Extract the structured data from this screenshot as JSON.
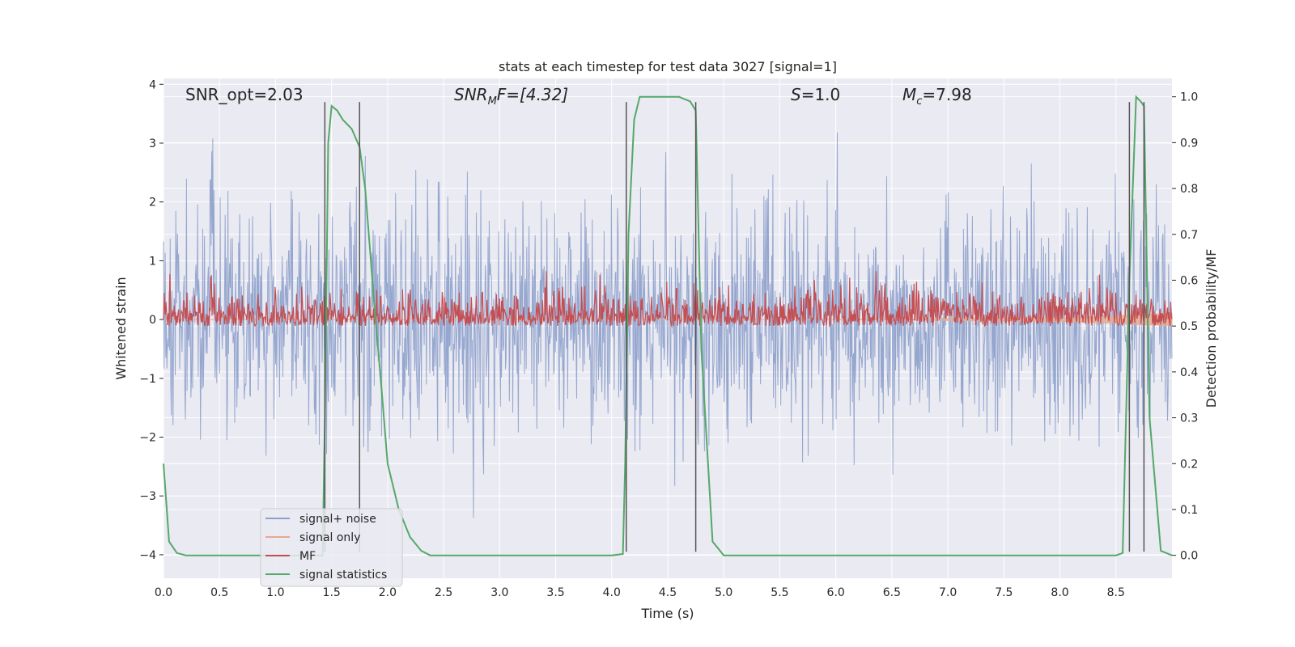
{
  "chart_data": {
    "type": "line",
    "title": "stats at each timestep for test data 3027 [signal=1]",
    "xlabel": "Time (s)",
    "ylabel": "Whitened strain",
    "y2label": "Detection probability/MF",
    "xlim": [
      0,
      9
    ],
    "ylim": [
      -4.4,
      4.1
    ],
    "y2lim": [
      -0.05,
      1.04
    ],
    "xticks": [
      "0.0",
      "0.5",
      "1.0",
      "1.5",
      "2.0",
      "2.5",
      "3.0",
      "3.5",
      "4.0",
      "4.5",
      "5.0",
      "5.5",
      "6.0",
      "6.5",
      "7.0",
      "7.5",
      "8.0",
      "8.5"
    ],
    "yticks": [
      "−4",
      "−3",
      "−2",
      "−1",
      "0",
      "1",
      "2",
      "3",
      "4"
    ],
    "y2ticks": [
      "0.0",
      "0.1",
      "0.2",
      "0.3",
      "0.4",
      "0.5",
      "0.6",
      "0.7",
      "0.8",
      "0.9",
      "1.0"
    ],
    "grid": true,
    "legend_position": "lower-left",
    "annotations": {
      "snr_opt": "SNR_opt=2.03",
      "snr_mf_prefix": "SNR",
      "snr_mf_sub": "M",
      "snr_mf_suffix": "F=[4.32]",
      "s_var": "S",
      "s_value": "=1.0",
      "mc_var": "M",
      "mc_sub": "c",
      "mc_value": "=7.98"
    },
    "series": [
      {
        "name": "signal+ noise",
        "color": "#8da0cb",
        "axis": "left",
        "amplitude_range": [
          -3.5,
          3.7
        ]
      },
      {
        "name": "signal only",
        "color": "#e8a98c",
        "axis": "left",
        "x": [
          0,
          6.0,
          7.0,
          8.0,
          8.5,
          8.75,
          9.0
        ],
        "y": [
          0,
          0,
          0.03,
          0.06,
          0.12,
          0.18,
          0.2
        ]
      },
      {
        "name": "MF",
        "color": "#c44e52",
        "axis": "right",
        "amplitude_range": [
          0.5,
          0.62
        ]
      },
      {
        "name": "signal statistics",
        "color": "#55a868",
        "axis": "right",
        "x": [
          0.0,
          0.05,
          0.12,
          0.2,
          0.4,
          1.0,
          1.35,
          1.42,
          1.44,
          1.47,
          1.5,
          1.55,
          1.6,
          1.68,
          1.75,
          1.8,
          1.88,
          1.95,
          2.0,
          2.1,
          2.2,
          2.3,
          2.38,
          2.5,
          3.0,
          3.5,
          4.0,
          4.1,
          4.12,
          4.15,
          4.2,
          4.25,
          4.4,
          4.6,
          4.7,
          4.75,
          4.8,
          4.9,
          5.0,
          5.5,
          6.0,
          7.0,
          8.0,
          8.5,
          8.56,
          8.62,
          8.68,
          8.72,
          8.75,
          8.8,
          8.9,
          9.0
        ],
        "y": [
          0.2,
          0.03,
          0.005,
          0.0,
          0.0,
          0.0,
          0.0,
          0.0,
          0.3,
          0.9,
          0.98,
          0.97,
          0.95,
          0.93,
          0.89,
          0.8,
          0.55,
          0.35,
          0.2,
          0.1,
          0.04,
          0.01,
          0.0,
          0.0,
          0.0,
          0.0,
          0.0,
          0.003,
          0.2,
          0.7,
          0.95,
          1.0,
          1.0,
          1.0,
          0.99,
          0.97,
          0.45,
          0.03,
          0.0,
          0.0,
          0.0,
          0.0,
          0.0,
          0.0,
          0.005,
          0.6,
          1.0,
          0.99,
          0.98,
          0.3,
          0.01,
          0.0
        ]
      }
    ],
    "vertical_markers": [
      {
        "x": 1.44,
        "ymin": -3.95,
        "ymax": 3.7
      },
      {
        "x": 1.75,
        "ymin": -3.95,
        "ymax": 3.7
      },
      {
        "x": 4.13,
        "ymin": -3.95,
        "ymax": 3.7
      },
      {
        "x": 4.75,
        "ymin": -3.95,
        "ymax": 3.7
      },
      {
        "x": 8.62,
        "ymin": -3.95,
        "ymax": 3.7
      },
      {
        "x": 8.75,
        "ymin": -3.95,
        "ymax": 3.7
      }
    ],
    "colors": {
      "background": "#eaeaf2",
      "grid": "#ffffff",
      "marker": "#555555",
      "text": "#262626"
    }
  }
}
